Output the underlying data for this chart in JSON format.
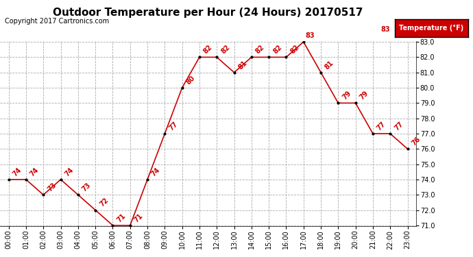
{
  "title": "Outdoor Temperature per Hour (24 Hours) 20170517",
  "copyright": "Copyright 2017 Cartronics.com",
  "legend_label": "Temperature (°F)",
  "hours": [
    0,
    1,
    2,
    3,
    4,
    5,
    6,
    7,
    8,
    9,
    10,
    11,
    12,
    13,
    14,
    15,
    16,
    17,
    18,
    19,
    20,
    21,
    22,
    23
  ],
  "temps": [
    74,
    74,
    73,
    74,
    73,
    72,
    71,
    71,
    74,
    77,
    80,
    82,
    82,
    81,
    82,
    82,
    82,
    83,
    81,
    79,
    79,
    77,
    77,
    76
  ],
  "xlabels": [
    "00:00",
    "01:00",
    "02:00",
    "03:00",
    "04:00",
    "05:00",
    "06:00",
    "07:00",
    "08:00",
    "09:00",
    "10:00",
    "11:00",
    "12:00",
    "13:00",
    "14:00",
    "15:00",
    "16:00",
    "17:00",
    "18:00",
    "19:00",
    "20:00",
    "21:00",
    "22:00",
    "23:00"
  ],
  "ylim_min": 71.0,
  "ylim_max": 83.0,
  "yticks": [
    71.0,
    72.0,
    73.0,
    74.0,
    75.0,
    76.0,
    77.0,
    78.0,
    79.0,
    80.0,
    81.0,
    82.0,
    83.0
  ],
  "line_color": "#cc0000",
  "marker_color": "#000000",
  "grid_color": "#aaaaaa",
  "bg_color": "#ffffff",
  "title_fontsize": 11,
  "label_fontsize": 7,
  "annotation_fontsize": 7,
  "copyright_fontsize": 7,
  "legend_bg": "#cc0000",
  "legend_text_color": "#ffffff"
}
